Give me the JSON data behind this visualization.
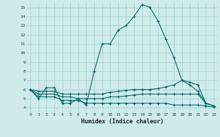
{
  "xlabel": "Humidex (Indice chaleur)",
  "bg_color": "#ceeaea",
  "grid_color": "#9fcece",
  "line_color": "#006666",
  "xlim": [
    -0.5,
    23.5
  ],
  "ylim": [
    3.5,
    15.5
  ],
  "yticks": [
    4,
    5,
    6,
    7,
    8,
    9,
    10,
    11,
    12,
    13,
    14,
    15
  ],
  "xticks": [
    0,
    1,
    2,
    3,
    4,
    5,
    6,
    7,
    8,
    9,
    10,
    11,
    12,
    13,
    14,
    15,
    16,
    17,
    18,
    19,
    20,
    21,
    22,
    23
  ],
  "line1_y": [
    6.0,
    5.0,
    6.2,
    6.2,
    4.5,
    4.5,
    5.0,
    4.3,
    8.0,
    11.0,
    11.0,
    12.5,
    13.0,
    14.0,
    15.3,
    15.0,
    13.5,
    11.5,
    9.5,
    7.0,
    6.5,
    5.8,
    4.5,
    4.2
  ],
  "line2_y": [
    6.0,
    5.8,
    5.8,
    5.8,
    5.5,
    5.5,
    5.5,
    5.5,
    5.5,
    5.5,
    5.7,
    5.8,
    5.9,
    6.0,
    6.0,
    6.0,
    6.1,
    6.3,
    6.5,
    7.0,
    6.8,
    6.5,
    4.5,
    4.2
  ],
  "line3_y": [
    6.0,
    5.5,
    5.5,
    5.5,
    5.2,
    5.2,
    5.0,
    5.0,
    5.0,
    5.0,
    5.2,
    5.2,
    5.3,
    5.4,
    5.5,
    5.5,
    5.5,
    5.5,
    5.5,
    5.5,
    5.5,
    5.5,
    4.5,
    4.2
  ],
  "line4_y": [
    6.0,
    5.2,
    5.2,
    5.2,
    4.8,
    4.8,
    4.8,
    4.5,
    4.5,
    4.5,
    4.5,
    4.5,
    4.5,
    4.5,
    4.5,
    4.5,
    4.5,
    4.5,
    4.3,
    4.3,
    4.3,
    4.3,
    4.2,
    4.1
  ]
}
